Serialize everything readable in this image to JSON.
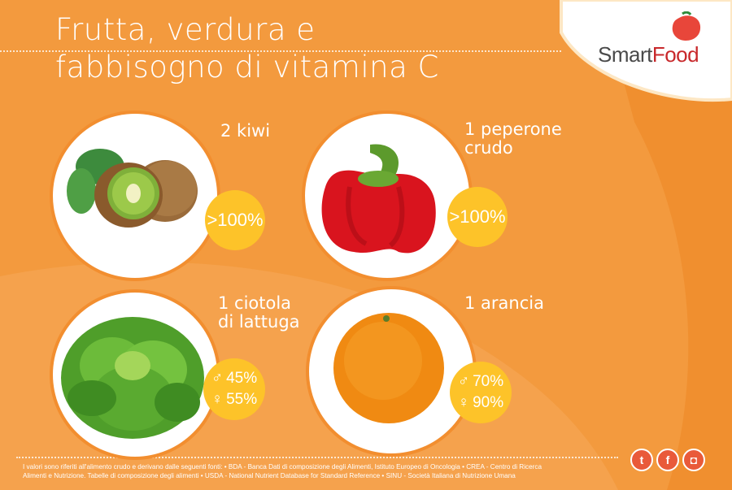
{
  "title": {
    "line1": "Frutta, verdura e",
    "line2": "fabbisogno di vitamina C"
  },
  "logo": {
    "smart": "Smart",
    "food": "Food"
  },
  "items": [
    {
      "label_line1": "2 kiwi",
      "label_line2": "",
      "value": ">100%"
    },
    {
      "label_line1": "1 peperone",
      "label_line2": "crudo",
      "value": ">100%"
    },
    {
      "label_line1": "1 ciotola",
      "label_line2": "di lattuga",
      "value_male": "45%",
      "value_female": "55%"
    },
    {
      "label_line1": "1 arancia",
      "label_line2": "",
      "value_male": "70%",
      "value_female": "90%"
    }
  ],
  "footer": {
    "line1": "I valori sono riferiti all'alimento crudo e derivano dalle seguenti fonti: • BDA - Banca Dati di composizione degli Alimenti, Istituto Europeo di Oncologia • CREA - Centro di Ricerca",
    "line2": "Alimenti e Nutrizione. Tabelle di composizione degli alimenti • USDA - National Nutrient Database for Standard Reference • SINU - Società Italiana di Nutrizione Umana"
  },
  "social": {
    "twitter": "t",
    "facebook": "f",
    "instagram": "◘"
  },
  "colors": {
    "background": "#f39a3e",
    "badge": "#fdc329",
    "brand_red": "#c8282b",
    "social": "#e95a3a"
  }
}
